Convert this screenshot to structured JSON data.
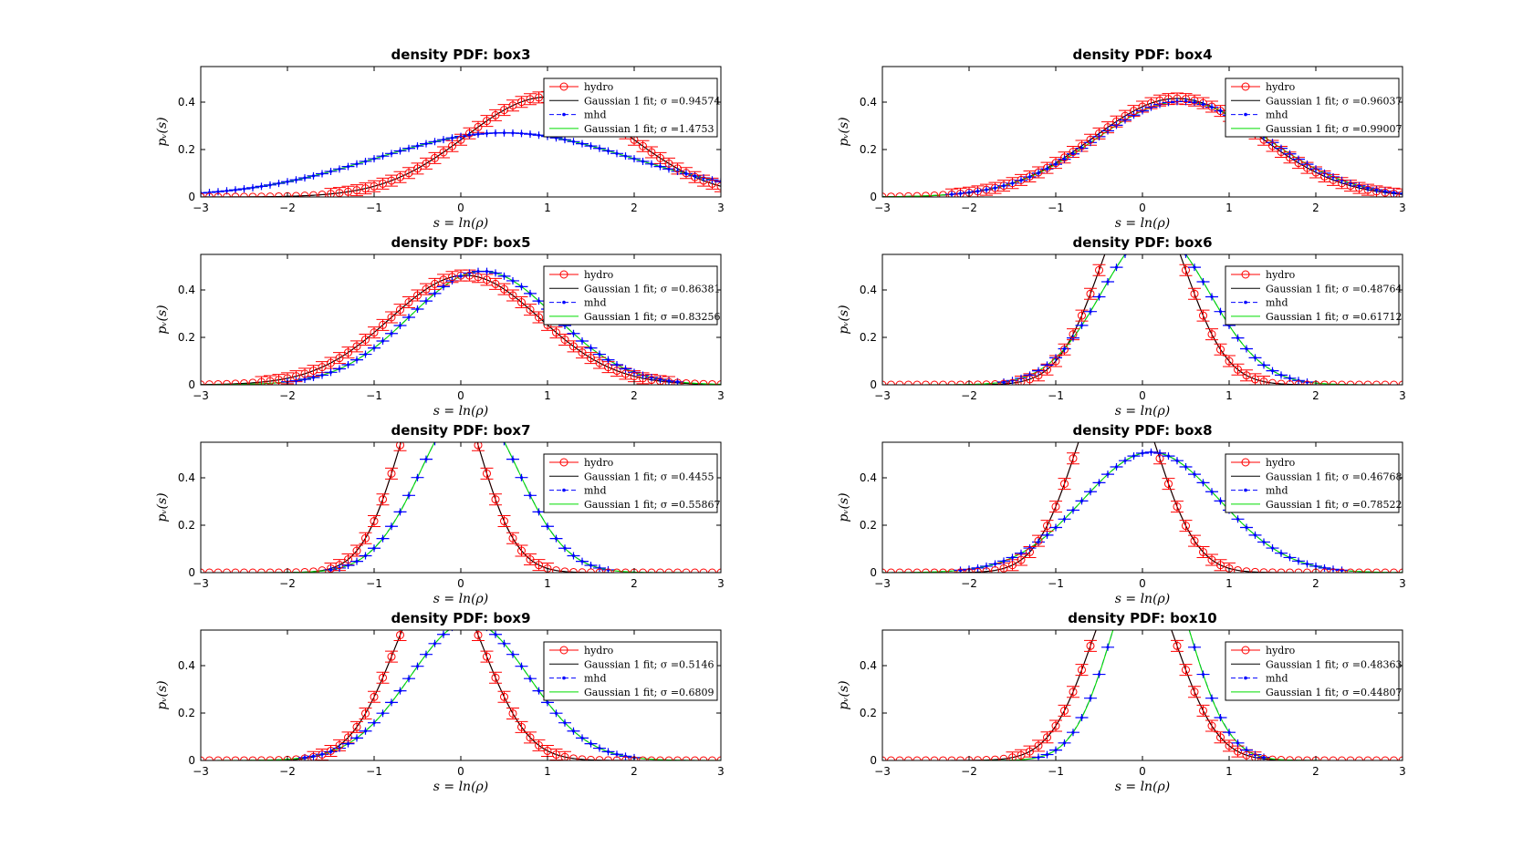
{
  "figure": {
    "xlabel": "s = ln(ρ)",
    "ylabel": "pᵥ(s)"
  },
  "chart_data": [
    {
      "type": "line",
      "title": "density PDF: box3",
      "xlim": [
        -3,
        3
      ],
      "ylim": [
        0,
        0.55
      ],
      "xticks": [
        -3,
        -2,
        -1,
        0,
        1,
        2,
        3
      ],
      "yticks": [
        0,
        0.2,
        0.4
      ],
      "legend_location": "top-right",
      "legend": [
        "hydro",
        "Gaussian 1 fit; σ =0.94574",
        "mhd",
        "Gaussian 1 fit; σ =1.4753"
      ],
      "hydro_mu": 1.0,
      "hydro_sigma": 0.94574,
      "mhd_mu": 0.5,
      "mhd_sigma": 1.4753
    },
    {
      "type": "line",
      "title": "density PDF: box4",
      "xlim": [
        -3,
        3
      ],
      "ylim": [
        0,
        0.55
      ],
      "xticks": [
        -3,
        -2,
        -1,
        0,
        1,
        2,
        3
      ],
      "yticks": [
        0,
        0.2,
        0.4
      ],
      "legend_location": "top-right",
      "legend": [
        "hydro",
        "Gaussian 1 fit; σ =0.96037",
        "mhd",
        "Gaussian 1 fit; σ =0.99007"
      ],
      "hydro_mu": 0.4,
      "hydro_sigma": 0.96037,
      "mhd_mu": 0.45,
      "mhd_sigma": 0.99007
    },
    {
      "type": "line",
      "title": "density PDF: box5",
      "xlim": [
        -3,
        3
      ],
      "ylim": [
        0,
        0.55
      ],
      "xticks": [
        -3,
        -2,
        -1,
        0,
        1,
        2,
        3
      ],
      "yticks": [
        0,
        0.2,
        0.4
      ],
      "legend_location": "top-right",
      "legend": [
        "hydro",
        "Gaussian 1 fit; σ =0.86381",
        "mhd",
        "Gaussian 1 fit; σ =0.83256"
      ],
      "hydro_mu": 0.05,
      "hydro_sigma": 0.86381,
      "mhd_mu": 0.25,
      "mhd_sigma": 0.83256
    },
    {
      "type": "line",
      "title": "density PDF: box6",
      "xlim": [
        -3,
        3
      ],
      "ylim": [
        0,
        0.55
      ],
      "xticks": [
        -3,
        -2,
        -1,
        0,
        1,
        2,
        3
      ],
      "yticks": [
        0,
        0.2,
        0.4
      ],
      "legend_location": "top-right",
      "legend": [
        "hydro",
        "Gaussian 1 fit; σ =0.48764",
        "mhd",
        "Gaussian 1 fit; σ =0.61712"
      ],
      "hydro_mu": 0.0,
      "hydro_sigma": 0.48764,
      "mhd_mu": 0.15,
      "mhd_sigma": 0.61712
    },
    {
      "type": "line",
      "title": "density PDF: box7",
      "xlim": [
        -3,
        3
      ],
      "ylim": [
        0,
        0.55
      ],
      "xticks": [
        -3,
        -2,
        -1,
        0,
        1,
        2,
        3
      ],
      "yticks": [
        0,
        0.2,
        0.4
      ],
      "legend_location": "top-right",
      "legend": [
        "hydro",
        "Gaussian 1 fit; σ =0.4455",
        "mhd",
        "Gaussian 1 fit; σ =0.55867"
      ],
      "hydro_mu": -0.25,
      "hydro_sigma": 0.4455,
      "mhd_mu": 0.1,
      "mhd_sigma": 0.55867
    },
    {
      "type": "line",
      "title": "density PDF: box8",
      "xlim": [
        -3,
        3
      ],
      "ylim": [
        0,
        0.55
      ],
      "xticks": [
        -3,
        -2,
        -1,
        0,
        1,
        2,
        3
      ],
      "yticks": [
        0,
        0.2,
        0.4
      ],
      "legend_location": "top-right",
      "legend": [
        "hydro",
        "Gaussian 1 fit; σ =0.46768",
        "mhd",
        "Gaussian 1 fit; σ =0.78522"
      ],
      "hydro_mu": -0.3,
      "hydro_sigma": 0.46768,
      "mhd_mu": 0.1,
      "mhd_sigma": 0.78522
    },
    {
      "type": "line",
      "title": "density PDF: box9",
      "xlim": [
        -3,
        3
      ],
      "ylim": [
        0,
        0.55
      ],
      "xticks": [
        -3,
        -2,
        -1,
        0,
        1,
        2,
        3
      ],
      "yticks": [
        0,
        0.2,
        0.4
      ],
      "legend_location": "top-right",
      "legend": [
        "hydro",
        "Gaussian 1 fit; σ =0.5146",
        "mhd",
        "Gaussian 1 fit; σ =0.6809"
      ],
      "hydro_mu": -0.25,
      "hydro_sigma": 0.5146,
      "mhd_mu": 0.1,
      "mhd_sigma": 0.6809
    },
    {
      "type": "line",
      "title": "density PDF: box10",
      "xlim": [
        -3,
        3
      ],
      "ylim": [
        0,
        0.55
      ],
      "xticks": [
        -3,
        -2,
        -1,
        0,
        1,
        2,
        3
      ],
      "yticks": [
        0,
        0.2,
        0.4
      ],
      "legend_location": "top-right",
      "legend": [
        "hydro",
        "Gaussian 1 fit; σ =0.48363",
        "mhd",
        "Gaussian 1 fit; σ =0.44807"
      ],
      "hydro_mu": -0.1,
      "hydro_sigma": 0.48363,
      "mhd_mu": 0.1,
      "mhd_sigma": 0.44807
    }
  ],
  "colors": {
    "hydro": "#ff0000",
    "hydro_fit": "#000000",
    "mhd": "#0000ff",
    "mhd_fit": "#00dd00"
  }
}
